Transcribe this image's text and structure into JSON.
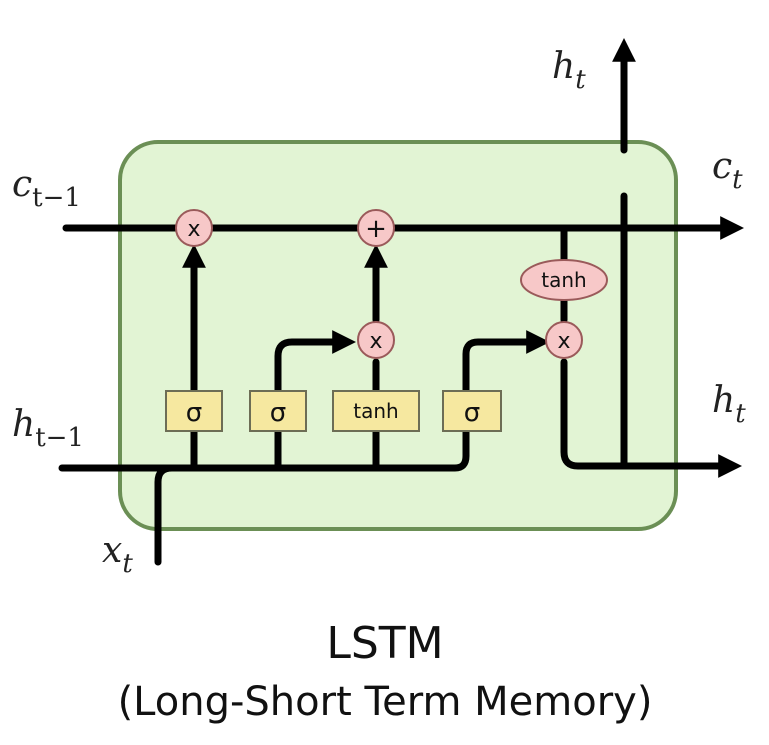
{
  "colors": {
    "cell_fill": "#e2f4d4",
    "cell_border": "#6b8f55",
    "gate_fill": "#f6e8a0",
    "gate_border": "#6d6d55",
    "op_fill": "#f7c8c8",
    "op_border": "#9a5a5a",
    "wire": "#000000"
  },
  "labels": {
    "c_prev": {
      "base": "c",
      "sub": "t−1"
    },
    "c_next": {
      "base": "c",
      "sub": "t"
    },
    "h_prev": {
      "base": "h",
      "sub": "t−1"
    },
    "h_out_top": {
      "base": "h",
      "sub": "t"
    },
    "h_out_right": {
      "base": "h",
      "sub": "t"
    },
    "x_in": {
      "base": "x",
      "sub": "t"
    }
  },
  "gates": {
    "forget": "σ",
    "input": "σ",
    "candidate": "tanh",
    "output": "σ"
  },
  "ops": {
    "forget_mult": "x",
    "cell_add": "+",
    "input_mult": "x",
    "output_mult": "x",
    "cell_tanh": "tanh"
  },
  "caption": {
    "title": "LSTM",
    "subtitle": "(Long-Short Term Memory)"
  }
}
